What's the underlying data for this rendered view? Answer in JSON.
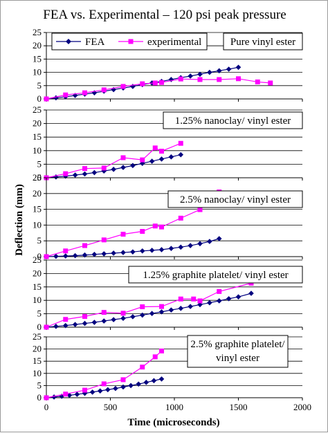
{
  "chart_data": {
    "type": "line",
    "title": "FEA vs. Experimental – 120 psi peak pressure",
    "xlabel": "Time (microseconds)",
    "ylabel": "Deflection (mm)",
    "xlim": [
      0,
      2000
    ],
    "ylim": [
      0,
      25
    ],
    "x_ticks": [
      "0",
      "500",
      "1000",
      "1500",
      "2000"
    ],
    "y_ticks": [
      "0",
      "5",
      "10",
      "15",
      "20",
      "25"
    ],
    "grid": true,
    "legend": {
      "placement": "top",
      "entries": [
        {
          "name": "FEA",
          "color": "#00007f",
          "marker": "diamond"
        },
        {
          "name": "experimental",
          "color": "#ff00ff",
          "marker": "square"
        }
      ]
    },
    "panels": [
      {
        "label_lines": [
          "Pure vinyl ester"
        ],
        "series": [
          {
            "name": "FEA",
            "x": [
              0,
              75,
              150,
              225,
              300,
              375,
              450,
              525,
              600,
              675,
              750,
              825,
              900,
              975,
              1050,
              1125,
              1200,
              1275,
              1350,
              1425,
              1500
            ],
            "y": [
              0,
              0.4,
              0.8,
              1.3,
              1.8,
              2.3,
              2.9,
              3.5,
              4.1,
              4.7,
              5.4,
              6.0,
              6.6,
              7.3,
              8.0,
              8.6,
              9.3,
              10.0,
              10.6,
              11.2,
              11.9
            ]
          },
          {
            "name": "experimental",
            "x": [
              0,
              150,
              300,
              450,
              600,
              750,
              850,
              900,
              1050,
              1200,
              1350,
              1500,
              1650,
              1750
            ],
            "y": [
              0,
              1.5,
              2.3,
              3.4,
              4.7,
              5.7,
              6.0,
              6.2,
              7.5,
              7.3,
              7.3,
              7.6,
              6.4,
              6.0
            ]
          }
        ]
      },
      {
        "label_lines": [
          "1.25% nanoclay/ vinyl ester"
        ],
        "series": [
          {
            "name": "FEA",
            "x": [
              0,
              75,
              150,
              225,
              300,
              375,
              450,
              525,
              600,
              675,
              750,
              825,
              900,
              975,
              1050
            ],
            "y": [
              0,
              0.3,
              0.6,
              1.0,
              1.4,
              1.9,
              2.5,
              3.1,
              3.8,
              4.5,
              5.3,
              6.1,
              6.9,
              7.7,
              8.5
            ]
          },
          {
            "name": "experimental",
            "x": [
              0,
              150,
              300,
              450,
              600,
              750,
              850,
              900,
              1050
            ],
            "y": [
              0,
              1.5,
              3.4,
              3.6,
              7.4,
              6.6,
              11.0,
              9.8,
              12.7
            ]
          }
        ]
      },
      {
        "label_lines": [
          "2.5% nanoclay/ vinyl ester"
        ],
        "series": [
          {
            "name": "FEA",
            "x": [
              0,
              75,
              150,
              225,
              300,
              375,
              450,
              525,
              600,
              675,
              750,
              825,
              900,
              975,
              1050,
              1125,
              1200,
              1275,
              1350
            ],
            "y": [
              0,
              0.1,
              0.2,
              0.3,
              0.5,
              0.7,
              0.9,
              1.1,
              1.3,
              1.5,
              1.8,
              2.0,
              2.2,
              2.6,
              3.0,
              3.5,
              4.1,
              4.8,
              5.7
            ]
          },
          {
            "name": "experimental",
            "x": [
              0,
              150,
              300,
              450,
              600,
              750,
              850,
              900,
              1050,
              1200,
              1350
            ],
            "y": [
              0,
              1.8,
              3.5,
              5.3,
              7.1,
              8.0,
              9.7,
              9.4,
              12.2,
              14.9,
              20.5
            ]
          }
        ]
      },
      {
        "label_lines": [
          "1.25% graphite platelet/ vinyl ester"
        ],
        "series": [
          {
            "name": "FEA",
            "x": [
              0,
              75,
              150,
              225,
              300,
              375,
              450,
              525,
              600,
              675,
              750,
              825,
              900,
              975,
              1050,
              1125,
              1200,
              1275,
              1350,
              1425,
              1500,
              1600
            ],
            "y": [
              0,
              0.3,
              0.6,
              1.0,
              1.4,
              1.8,
              2.3,
              2.8,
              3.3,
              3.9,
              4.5,
              5.1,
              5.7,
              6.4,
              7.0,
              7.7,
              8.4,
              9.1,
              9.8,
              10.6,
              11.3,
              12.6
            ]
          },
          {
            "name": "experimental",
            "x": [
              0,
              150,
              300,
              450,
              600,
              750,
              900,
              1050,
              1150,
              1200,
              1350,
              1600
            ],
            "y": [
              0,
              2.9,
              4.0,
              5.5,
              5.2,
              7.6,
              7.7,
              10.5,
              10.5,
              9.8,
              13.3,
              16.4
            ]
          }
        ]
      },
      {
        "label_lines": [
          "2.5% graphite platelet/",
          "vinyl ester"
        ],
        "series": [
          {
            "name": "FEA",
            "x": [
              0,
              60,
              120,
              180,
              240,
              300,
              360,
              420,
              480,
              540,
              600,
              660,
              720,
              780,
              840,
              900
            ],
            "y": [
              0,
              0.3,
              0.6,
              1.0,
              1.4,
              1.8,
              2.3,
              2.8,
              3.3,
              3.8,
              4.4,
              5.0,
              5.6,
              6.3,
              7.0,
              7.7
            ]
          },
          {
            "name": "experimental",
            "x": [
              0,
              150,
              300,
              450,
              600,
              750,
              850,
              900
            ],
            "y": [
              0,
              1.5,
              3.1,
              5.7,
              7.4,
              12.6,
              16.8,
              19.2
            ]
          }
        ]
      }
    ]
  }
}
